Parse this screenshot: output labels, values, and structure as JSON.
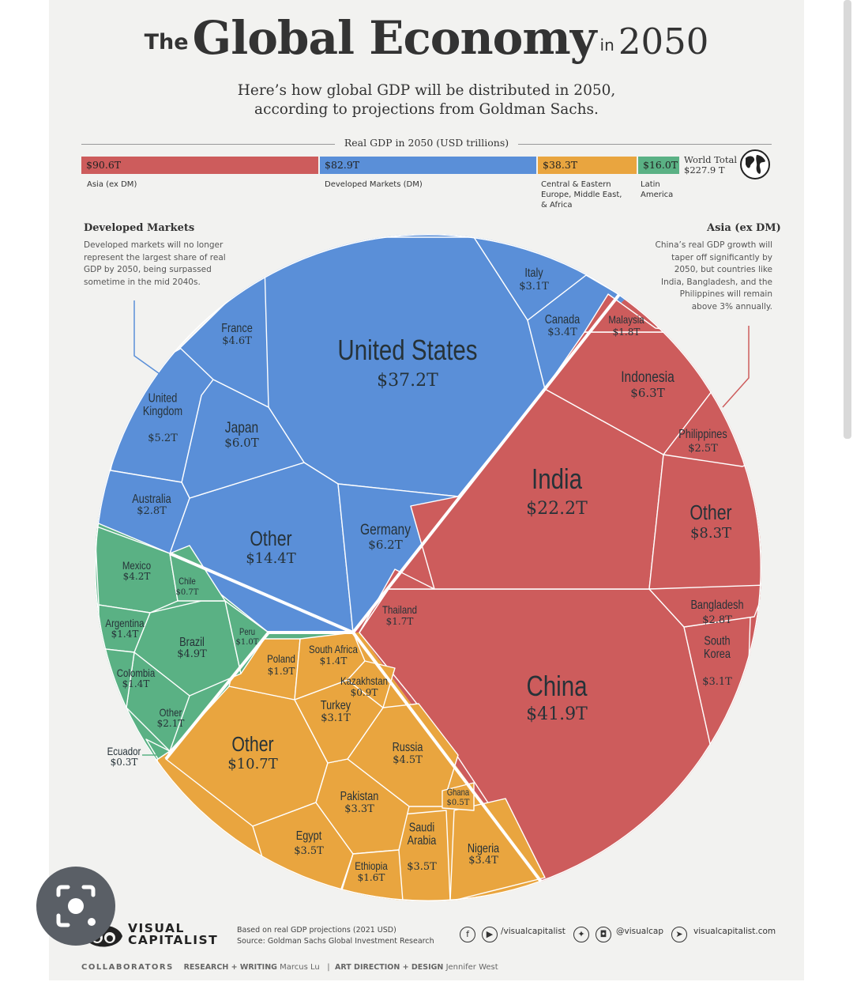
{
  "title": {
    "the": "The",
    "main": "Global Economy",
    "in": "in",
    "year": "2050"
  },
  "subtitle": {
    "line1": "Here’s how global GDP will be distributed in 2050,",
    "line2": "according to projections from Goldman Sachs."
  },
  "bar": {
    "caption": "Real GDP in 2050 (USD trillions)",
    "segments": [
      {
        "value": "$90.6T",
        "label": [
          "Asia (ex DM)"
        ],
        "color": "#cd5c5c"
      },
      {
        "value": "$82.9T",
        "label": [
          "Developed Markets (DM)"
        ],
        "color": "#5a8fd8"
      },
      {
        "value": "$38.3T",
        "label": [
          "Central & Eastern",
          "Europe, Middle East,",
          "& Africa"
        ],
        "color": "#e9a53f"
      },
      {
        "value": "$16.0T",
        "label": [
          "Latin",
          "America"
        ],
        "color": "#5ab184"
      }
    ],
    "world_total_label": "World Total",
    "world_total_value": "$227.9 T"
  },
  "notes": {
    "developed": {
      "title": "Developed Markets",
      "lines": [
        "Developed markets will no longer",
        "represent the largest share of real",
        "GDP by 2050, being surpassed",
        "sometime in the mid 2040s."
      ]
    },
    "asia": {
      "title": "Asia (ex DM)",
      "lines": [
        "China’s real GDP growth will",
        "taper off significantly by",
        "2050, but countries like",
        "India, Bangladesh, and the",
        "Philippines will remain",
        "above 3% annually."
      ]
    }
  },
  "chart_data": {
    "type": "voronoi-treemap",
    "title": "Real GDP in 2050 (USD trillions)",
    "unit": "USD trillions",
    "groups": [
      {
        "name": "Developed Markets (DM)",
        "total": 82.9,
        "color": "#5a8fd8",
        "countries": [
          {
            "name": "United States",
            "value": 37.2
          },
          {
            "name": "Other",
            "value": 14.4
          },
          {
            "name": "Germany",
            "value": 6.2
          },
          {
            "name": "Japan",
            "value": 6.0
          },
          {
            "name": "United Kingdom",
            "value": 5.2
          },
          {
            "name": "France",
            "value": 4.6
          },
          {
            "name": "Canada",
            "value": 3.4
          },
          {
            "name": "Italy",
            "value": 3.1
          },
          {
            "name": "Australia",
            "value": 2.8
          }
        ]
      },
      {
        "name": "Asia (ex DM)",
        "total": 90.6,
        "color": "#cd5c5c",
        "countries": [
          {
            "name": "China",
            "value": 41.9
          },
          {
            "name": "India",
            "value": 22.2
          },
          {
            "name": "Other",
            "value": 8.3
          },
          {
            "name": "Indonesia",
            "value": 6.3
          },
          {
            "name": "South Korea",
            "value": 3.1
          },
          {
            "name": "Bangladesh",
            "value": 2.8
          },
          {
            "name": "Philippines",
            "value": 2.5
          },
          {
            "name": "Malaysia",
            "value": 1.8
          },
          {
            "name": "Thailand",
            "value": 1.7
          }
        ]
      },
      {
        "name": "Central & Eastern Europe, Middle East, & Africa",
        "total": 38.3,
        "color": "#e9a53f",
        "countries": [
          {
            "name": "Other",
            "value": 10.7
          },
          {
            "name": "Russia",
            "value": 4.5
          },
          {
            "name": "Egypt",
            "value": 3.5
          },
          {
            "name": "Saudi Arabia",
            "value": 3.5
          },
          {
            "name": "Nigeria",
            "value": 3.4
          },
          {
            "name": "Pakistan",
            "value": 3.3
          },
          {
            "name": "Turkey",
            "value": 3.1
          },
          {
            "name": "Poland",
            "value": 1.9
          },
          {
            "name": "Ethiopia",
            "value": 1.6
          },
          {
            "name": "South Africa",
            "value": 1.4
          },
          {
            "name": "Kazakhstan",
            "value": 0.9
          },
          {
            "name": "Ghana",
            "value": 0.5
          }
        ]
      },
      {
        "name": "Latin America",
        "total": 16.0,
        "color": "#5ab184",
        "countries": [
          {
            "name": "Brazil",
            "value": 4.9
          },
          {
            "name": "Mexico",
            "value": 4.2
          },
          {
            "name": "Other",
            "value": 2.1
          },
          {
            "name": "Argentina",
            "value": 1.4
          },
          {
            "name": "Colombia",
            "value": 1.4
          },
          {
            "name": "Peru",
            "value": 1.0
          },
          {
            "name": "Chile",
            "value": 0.7
          },
          {
            "name": "Ecuador",
            "value": 0.3
          }
        ]
      }
    ],
    "world_total": 227.9
  },
  "cells": [
    {
      "id": "us",
      "name": [
        "United States"
      ],
      "value": "$37.2T",
      "color": "#5a8fd8",
      "size": "xl"
    },
    {
      "id": "dm-other",
      "name": [
        "Other"
      ],
      "value": "$14.4T",
      "color": "#5a8fd8",
      "size": "l"
    },
    {
      "id": "germany",
      "name": [
        "Germany"
      ],
      "value": "$6.2T",
      "color": "#5a8fd8",
      "size": "m"
    },
    {
      "id": "japan",
      "name": [
        "Japan"
      ],
      "value": "$6.0T",
      "color": "#5a8fd8",
      "size": "m"
    },
    {
      "id": "uk",
      "name": [
        "United",
        "Kingdom"
      ],
      "value": "$5.2T",
      "color": "#5a8fd8",
      "size": "s"
    },
    {
      "id": "france",
      "name": [
        "France"
      ],
      "value": "$4.6T",
      "color": "#5a8fd8",
      "size": "s"
    },
    {
      "id": "canada",
      "name": [
        "Canada"
      ],
      "value": "$3.4T",
      "color": "#5a8fd8",
      "size": "s"
    },
    {
      "id": "italy",
      "name": [
        "Italy"
      ],
      "value": "$3.1T",
      "color": "#5a8fd8",
      "size": "s"
    },
    {
      "id": "australia",
      "name": [
        "Australia"
      ],
      "value": "$2.8T",
      "color": "#5a8fd8",
      "size": "s"
    },
    {
      "id": "china",
      "name": [
        "China"
      ],
      "value": "$41.9T",
      "color": "#cd5c5c",
      "size": "xl"
    },
    {
      "id": "india",
      "name": [
        "India"
      ],
      "value": "$22.2T",
      "color": "#cd5c5c",
      "size": "xl"
    },
    {
      "id": "asia-other",
      "name": [
        "Other"
      ],
      "value": "$8.3T",
      "color": "#cd5c5c",
      "size": "l"
    },
    {
      "id": "indonesia",
      "name": [
        "Indonesia"
      ],
      "value": "$6.3T",
      "color": "#cd5c5c",
      "size": "m"
    },
    {
      "id": "south-korea",
      "name": [
        "South",
        "Korea"
      ],
      "value": "$3.1T",
      "color": "#cd5c5c",
      "size": "s"
    },
    {
      "id": "bangladesh",
      "name": [
        "Bangladesh"
      ],
      "value": "$2.8T",
      "color": "#cd5c5c",
      "size": "s"
    },
    {
      "id": "philippines",
      "name": [
        "Philippines"
      ],
      "value": "$2.5T",
      "color": "#cd5c5c",
      "size": "s"
    },
    {
      "id": "malaysia",
      "name": [
        "Malaysia"
      ],
      "value": "$1.8T",
      "color": "#cd5c5c",
      "size": "xs"
    },
    {
      "id": "thailand",
      "name": [
        "Thailand"
      ],
      "value": "$1.7T",
      "color": "#cd5c5c",
      "size": "xs"
    },
    {
      "id": "ceem-other",
      "name": [
        "Other"
      ],
      "value": "$10.7T",
      "color": "#e9a53f",
      "size": "l"
    },
    {
      "id": "russia",
      "name": [
        "Russia"
      ],
      "value": "$4.5T",
      "color": "#e9a53f",
      "size": "s"
    },
    {
      "id": "egypt",
      "name": [
        "Egypt"
      ],
      "value": "$3.5T",
      "color": "#e9a53f",
      "size": "s"
    },
    {
      "id": "saudi",
      "name": [
        "Saudi",
        "Arabia"
      ],
      "value": "$3.5T",
      "color": "#e9a53f",
      "size": "s"
    },
    {
      "id": "nigeria",
      "name": [
        "Nigeria"
      ],
      "value": "$3.4T",
      "color": "#e9a53f",
      "size": "s"
    },
    {
      "id": "pakistan",
      "name": [
        "Pakistan"
      ],
      "value": "$3.3T",
      "color": "#e9a53f",
      "size": "s"
    },
    {
      "id": "turkey",
      "name": [
        "Turkey"
      ],
      "value": "$3.1T",
      "color": "#e9a53f",
      "size": "s"
    },
    {
      "id": "poland",
      "name": [
        "Poland"
      ],
      "value": "$1.9T",
      "color": "#e9a53f",
      "size": "xs"
    },
    {
      "id": "ethiopia",
      "name": [
        "Ethiopia"
      ],
      "value": "$1.6T",
      "color": "#e9a53f",
      "size": "xs"
    },
    {
      "id": "south-africa",
      "name": [
        "South Africa"
      ],
      "value": "$1.4T",
      "color": "#e9a53f",
      "size": "xs"
    },
    {
      "id": "kazakhstan",
      "name": [
        "Kazakhstan"
      ],
      "value": "$0.9T",
      "color": "#e9a53f",
      "size": "xs"
    },
    {
      "id": "ghana",
      "name": [
        "Ghana"
      ],
      "value": "$0.5T",
      "color": "#e9a53f",
      "size": "xxs"
    },
    {
      "id": "brazil",
      "name": [
        "Brazil"
      ],
      "value": "$4.9T",
      "color": "#5ab184",
      "size": "s"
    },
    {
      "id": "mexico",
      "name": [
        "Mexico"
      ],
      "value": "$4.2T",
      "color": "#5ab184",
      "size": "xs"
    },
    {
      "id": "latam-other",
      "name": [
        "Other"
      ],
      "value": "$2.1T",
      "color": "#5ab184",
      "size": "xs"
    },
    {
      "id": "argentina",
      "name": [
        "Argentina"
      ],
      "value": "$1.4T",
      "color": "#5ab184",
      "size": "xs"
    },
    {
      "id": "colombia",
      "name": [
        "Colombia"
      ],
      "value": "$1.4T",
      "color": "#5ab184",
      "size": "xs"
    },
    {
      "id": "peru",
      "name": [
        "Peru"
      ],
      "value": "$1.0T",
      "color": "#5ab184",
      "size": "xxs"
    },
    {
      "id": "chile",
      "name": [
        "Chile"
      ],
      "value": "$0.7T",
      "color": "#5ab184",
      "size": "xxs"
    },
    {
      "id": "ecuador",
      "name": [
        "Ecuador"
      ],
      "value": "$0.3T",
      "color": "#5ab184",
      "size": "xs"
    }
  ],
  "footer": {
    "logo_line1": "VISUAL",
    "logo_line2": "CAPITALIST",
    "based_on": "Based on real GDP projections (2021 USD)",
    "source": "Source: Goldman Sachs Global Investment Research",
    "social_fb_yt": "/visualcapitalist",
    "social_tw_ig": "@visualcap",
    "website": "visualcapitalist.com",
    "collaborators": "COLLABORATORS",
    "research_role": "RESEARCH + WRITING",
    "research_name": "Marcus Lu",
    "art_role": "ART DIRECTION + DESIGN",
    "art_name": "Jennifer West"
  }
}
